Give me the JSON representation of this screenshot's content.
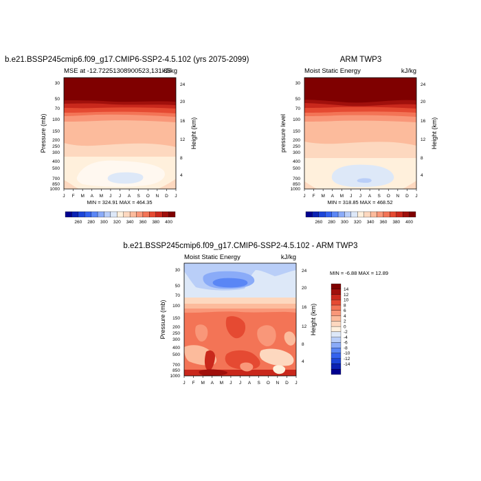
{
  "chart_data": [
    {
      "type": "heatmap",
      "title": "b.e21.BSSP245cmip6.f09_g17.CMIP6-SSP2-4.5.102 (yrs 2075-2099)",
      "left_subtitle": "MSE at -12.72251308900523,131.85",
      "right_subtitle": "kJ/kg",
      "ylabel": "Pressure (mb)",
      "y2label": "Height (km)",
      "xticks": [
        "J",
        "F",
        "M",
        "A",
        "M",
        "J",
        "J",
        "A",
        "S",
        "O",
        "N",
        "D",
        "J"
      ],
      "yticks": [
        "30",
        "50",
        "70",
        "100",
        "150",
        "200",
        "250",
        "300",
        "400",
        "500",
        "700",
        "850",
        "1000"
      ],
      "y2ticks": [
        "24",
        "20",
        "16",
        "12",
        "8",
        "4"
      ],
      "minmax_text": "MIN = 324.91 MAX = 464.35",
      "colorbar": {
        "labels": [
          "260",
          "280",
          "300",
          "320",
          "340",
          "360",
          "380",
          "400"
        ]
      }
    },
    {
      "type": "heatmap",
      "title": "ARM TWP3",
      "left_subtitle": "Moist Static Energy",
      "right_subtitle": "kJ/kg",
      "ylabel": "pressure level",
      "y2label": "Height (km)",
      "xticks": [
        "J",
        "F",
        "M",
        "A",
        "M",
        "J",
        "J",
        "A",
        "S",
        "O",
        "N",
        "D",
        "J"
      ],
      "yticks": [
        "30",
        "50",
        "70",
        "100",
        "150",
        "200",
        "250",
        "300",
        "400",
        "500",
        "700",
        "850",
        "1000"
      ],
      "y2ticks": [
        "24",
        "20",
        "16",
        "12",
        "8",
        "4"
      ],
      "minmax_text": "MIN = 318.85 MAX = 468.52",
      "colorbar": {
        "labels": [
          "260",
          "280",
          "300",
          "320",
          "340",
          "360",
          "380",
          "400"
        ]
      }
    },
    {
      "type": "heatmap",
      "title": "b.e21.BSSP245cmip6.f09_g17.CMIP6-SSP2-4.5.102 - ARM TWP3",
      "left_subtitle": "Moist Static Energy",
      "right_subtitle": "kJ/kg",
      "ylabel": "Pressure (mb)",
      "y2label": "Height (km)",
      "xticks": [
        "J",
        "F",
        "M",
        "A",
        "M",
        "J",
        "J",
        "A",
        "S",
        "O",
        "N",
        "D",
        "J"
      ],
      "yticks": [
        "30",
        "50",
        "70",
        "100",
        "150",
        "200",
        "250",
        "300",
        "400",
        "500",
        "700",
        "850",
        "1000"
      ],
      "y2ticks": [
        "24",
        "20",
        "16",
        "12",
        "8",
        "4"
      ],
      "minmax_text": "MIN = -6.88 MAX = 12.89",
      "colorbar": {
        "labels": [
          "14",
          "12",
          "10",
          "8",
          "6",
          "4",
          "2",
          "0",
          "-2",
          "-4",
          "-6",
          "-8",
          "-10",
          "-12",
          "-14"
        ]
      }
    }
  ],
  "colors": {
    "mse_scale": [
      "#00008f",
      "#0b22b4",
      "#1c45d8",
      "#3462ee",
      "#5a86f5",
      "#8aabf8",
      "#b9cef8",
      "#dde8f8",
      "#fff0dc",
      "#fdd8bf",
      "#fcbb9c",
      "#f99779",
      "#f37456",
      "#e54a32",
      "#c9281c",
      "#a0100c",
      "#7f0000"
    ],
    "diff_scale": [
      "#7f0000",
      "#a0100c",
      "#c9281c",
      "#e54a32",
      "#f37456",
      "#f99779",
      "#fcbb9c",
      "#fdd8bf",
      "#fff0dc",
      "#dde8f8",
      "#b9cef8",
      "#8aabf8",
      "#5a86f5",
      "#3462ee",
      "#1c45d8",
      "#0b22b4",
      "#00008f"
    ]
  }
}
